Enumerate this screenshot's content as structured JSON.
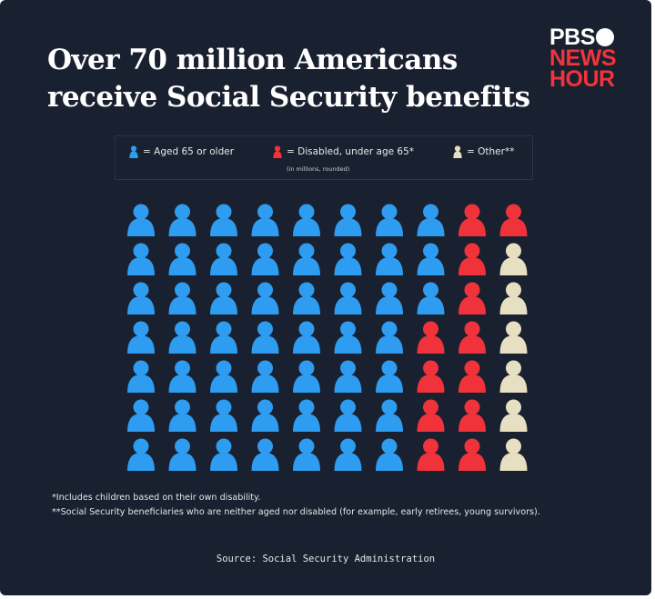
{
  "title_line1": "Over 70 million Americans",
  "title_line2": "receive Social Security benefits",
  "logo": {
    "line1": "PBS",
    "line2": "NEWS",
    "line3": "HOUR"
  },
  "legend": {
    "aged": "= Aged 65 or older",
    "disabled": "= Disabled, under age 65*",
    "other": "= Other**",
    "note": "(in millions, rounded)"
  },
  "colors": {
    "aged": "#2e9cf0",
    "disabled": "#f0323a",
    "other": "#e6dfc2",
    "background": "#192030"
  },
  "chart_data": {
    "type": "pictogram",
    "unit": "1 icon = 1 million people",
    "grid": {
      "rows": 7,
      "columns": 10
    },
    "series": [
      {
        "name": "Aged 65 or older",
        "value": 52,
        "color": "#2e9cf0"
      },
      {
        "name": "Disabled, under age 65*",
        "value": 12,
        "color": "#f0323a"
      },
      {
        "name": "Other**",
        "value": 6,
        "color": "#e6dfc2"
      }
    ],
    "total": 70
  },
  "notes": [
    "*Includes children based on their own disability.",
    "**Social Security beneficiaries who are neither aged nor disabled (for example, early retirees, young survivors)."
  ],
  "source": "Source: Social Security Administration"
}
